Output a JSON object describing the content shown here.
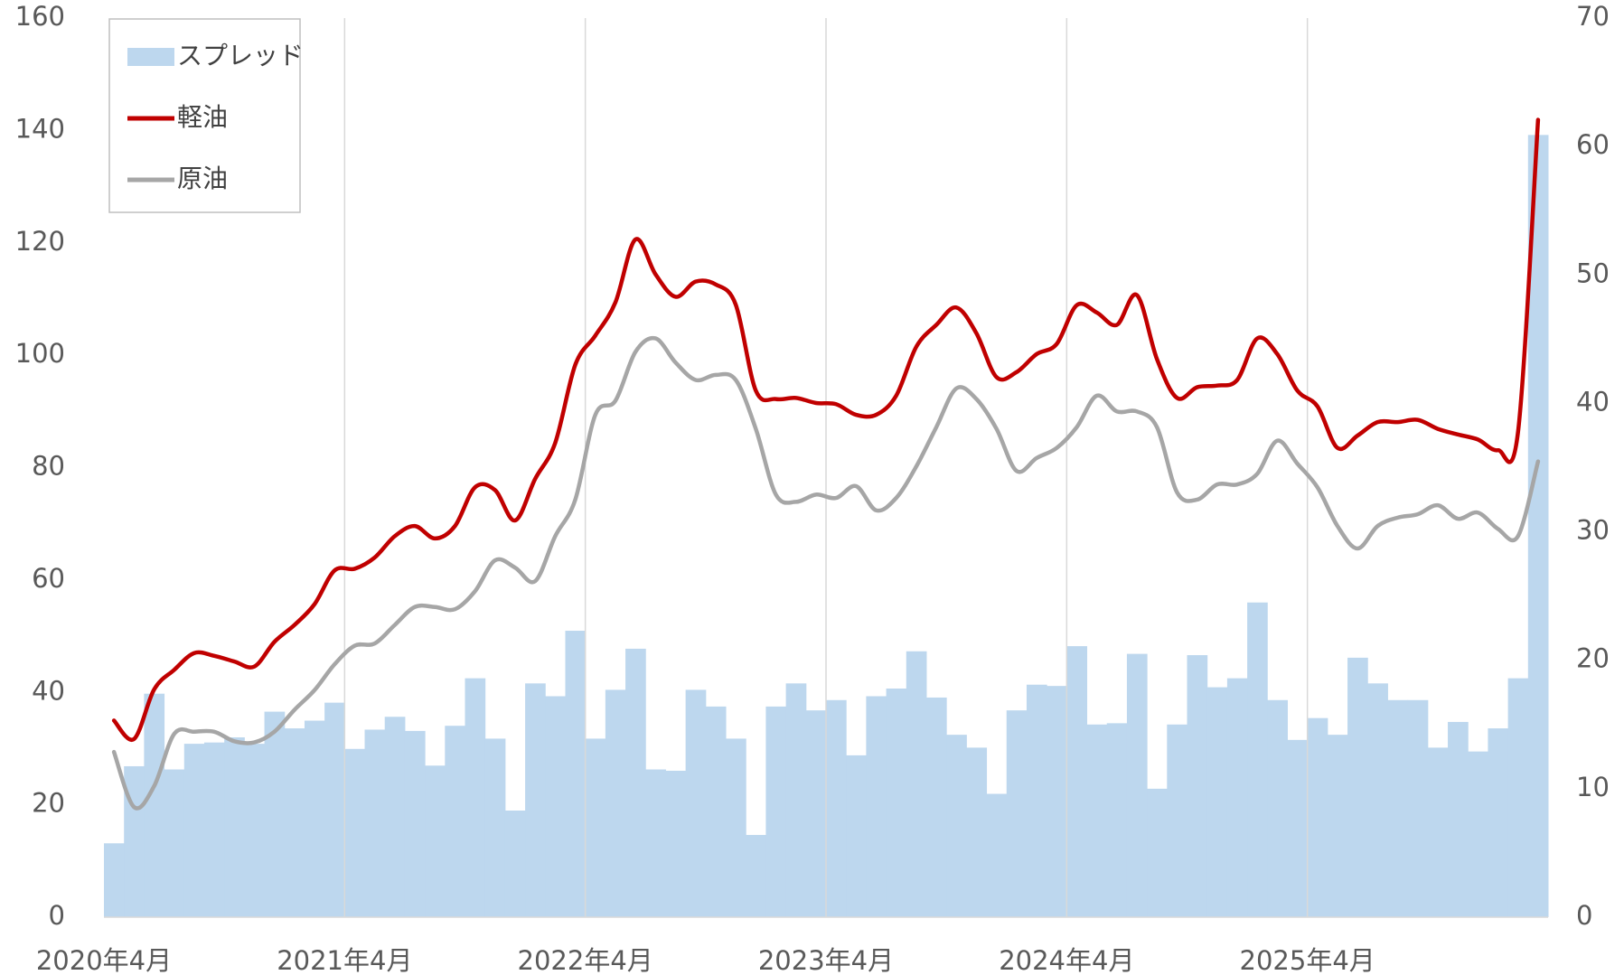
{
  "chart_data": {
    "type": "combo",
    "categories": [
      "2020年4月",
      null,
      null,
      null,
      null,
      null,
      null,
      null,
      null,
      null,
      null,
      null,
      "2021年4月",
      null,
      null,
      null,
      null,
      null,
      null,
      null,
      null,
      null,
      null,
      null,
      "2022年4月",
      null,
      null,
      null,
      null,
      null,
      null,
      null,
      null,
      null,
      null,
      null,
      "2023年4月",
      null,
      null,
      null,
      null,
      null,
      null,
      null,
      null,
      null,
      null,
      null,
      "2024年4月",
      null,
      null,
      null,
      null,
      null,
      null,
      null,
      null,
      null,
      null,
      null,
      "2025年4月",
      null,
      null,
      null,
      null,
      null,
      null,
      null,
      null,
      null,
      null,
      null
    ],
    "series": [
      {
        "name": "スプレッド",
        "type": "bar",
        "axis": "y2",
        "color": "#bdd7ee",
        "values": [
          5.75,
          11.75,
          17.4,
          11.5,
          13.5,
          13.6,
          14.0,
          13.5,
          16.0,
          14.7,
          15.3,
          16.7,
          13.1,
          14.6,
          15.6,
          14.5,
          11.8,
          14.9,
          18.6,
          13.9,
          8.3,
          18.2,
          17.2,
          22.3,
          13.9,
          17.7,
          20.9,
          11.5,
          11.4,
          17.7,
          16.4,
          13.9,
          6.4,
          16.4,
          18.2,
          16.1,
          16.9,
          12.6,
          17.2,
          17.8,
          20.7,
          17.1,
          14.2,
          13.2,
          9.6,
          16.1,
          18.1,
          18.0,
          21.1,
          15.0,
          15.1,
          20.5,
          10.0,
          15.0,
          20.4,
          17.9,
          18.6,
          24.5,
          16.9,
          13.8,
          15.5,
          14.2,
          20.2,
          18.2,
          16.9,
          16.9,
          13.2,
          15.2,
          12.9,
          14.7,
          18.6,
          60.9
        ]
      },
      {
        "name": "軽油",
        "type": "line",
        "color": "#c00000",
        "values": [
          35,
          31.7,
          40.5,
          44,
          47,
          46.5,
          45.5,
          44.6,
          49,
          52,
          55.7,
          61.7,
          62,
          64,
          67.8,
          69.6,
          67.4,
          69.6,
          76.5,
          76,
          70.6,
          78,
          84.4,
          98.3,
          103.5,
          109.4,
          120.6,
          114.4,
          110.4,
          113.1,
          112.6,
          109,
          93.7,
          92.2,
          92.4,
          91.5,
          91.3,
          89.4,
          89.4,
          92.8,
          101.5,
          105.4,
          108.5,
          103.9,
          96.1,
          97,
          100.2,
          102,
          108.9,
          107.6,
          105.4,
          110.7,
          99.3,
          92.4,
          94.3,
          94.6,
          95.6,
          103,
          100.2,
          93.7,
          90.9,
          83.5,
          85.7,
          88.1,
          88.1,
          88.5,
          86.9,
          85.9,
          85,
          83.1,
          86.3,
          141.9
        ]
      },
      {
        "name": "原油",
        "type": "line",
        "color": "#a6a6a6",
        "values": [
          29.4,
          19.6,
          23.3,
          32.6,
          33,
          33,
          31.3,
          31.1,
          33,
          36.9,
          40.4,
          45,
          48.3,
          48.7,
          52,
          55.2,
          55.2,
          54.8,
          58,
          63.5,
          62.2,
          59.8,
          67.8,
          74.3,
          89.4,
          91.9,
          100.6,
          103,
          98.7,
          95.6,
          96.5,
          95.6,
          86.9,
          75.2,
          73.9,
          75.2,
          74.6,
          76.7,
          72.4,
          74.6,
          80.2,
          87.2,
          94.1,
          92.2,
          86.9,
          79.4,
          81.7,
          83.5,
          87.2,
          92.8,
          90,
          90,
          87.2,
          75.6,
          74.3,
          77,
          77,
          78.9,
          84.8,
          80.7,
          76.5,
          69.6,
          65.6,
          69.6,
          71.1,
          71.7,
          73.3,
          70.9,
          72,
          69.1,
          67.8,
          81.1
        ]
      }
    ],
    "ylim": [
      0,
      160
    ],
    "yticks": [
      0,
      20,
      40,
      60,
      80,
      100,
      120,
      140,
      160
    ],
    "y2lim": [
      0,
      70
    ],
    "y2ticks": [
      0,
      10,
      20,
      30,
      40,
      50,
      60,
      70
    ],
    "grid": "x",
    "legend": "upper left"
  }
}
